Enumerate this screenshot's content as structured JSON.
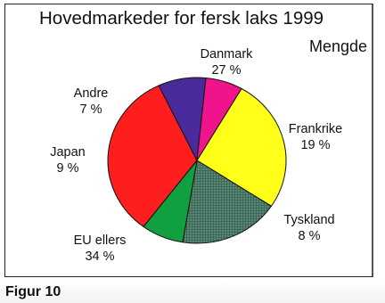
{
  "header": {
    "title": "Hovedmarkeder for fersk laks 1999",
    "subtitle": "Mengde"
  },
  "caption": "Figur 10",
  "chart_data": {
    "type": "pie",
    "title": "Hovedmarkeder for fersk laks 1999",
    "subtitle": "Mengde",
    "categories": [
      "Danmark",
      "Frankrike",
      "Tyskland",
      "EU ellers",
      "Japan",
      "Andre"
    ],
    "values": [
      27,
      19,
      8,
      34,
      9,
      7
    ],
    "value_labels": [
      "27 %",
      "19 %",
      "8 %",
      "34 %",
      "9 %",
      "7 %"
    ],
    "colors": [
      "#ffff1a",
      "#3c6a58",
      "#10a040",
      "#ff1e1e",
      "#4a2a9a",
      "#f0148c"
    ],
    "legend": "none"
  }
}
